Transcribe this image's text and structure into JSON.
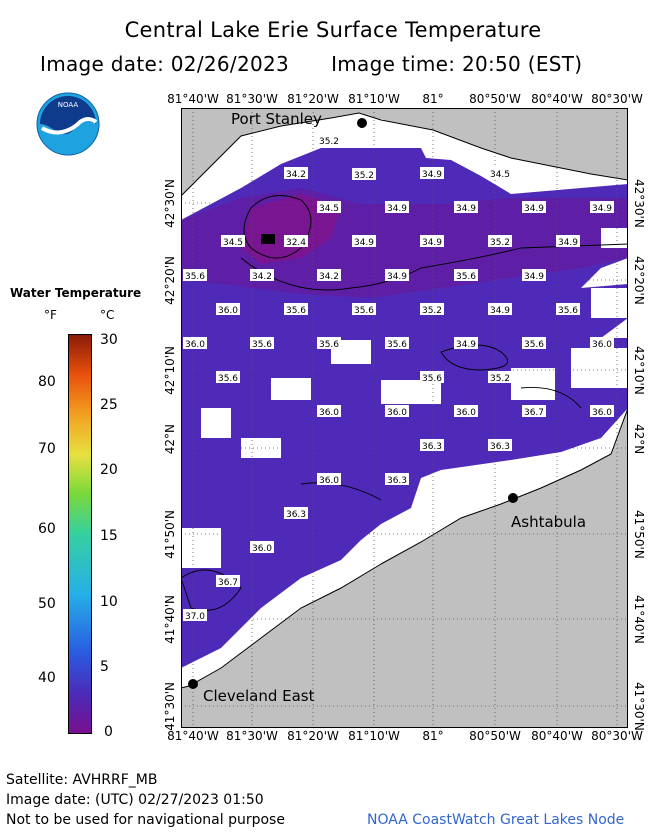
{
  "title": "Central Lake Erie Surface Temperature",
  "image_date": "Image date: 02/26/2023",
  "image_time": "Image time: 20:50 (EST)",
  "logo_text": "NOAA",
  "lon_ticks": [
    "81°40'W",
    "81°30'W",
    "81°20'W",
    "81°10'W",
    "81°",
    "80°50'W",
    "80°40'W",
    "80°30'W"
  ],
  "lat_ticks": [
    "42°30'N",
    "42°20'N",
    "42°10'N",
    "42°N",
    "41°50'N",
    "41°40'N",
    "41°30'N"
  ],
  "cities": {
    "port_stanley": "Port Stanley",
    "ashtabula": "Ashtabula",
    "cleveland_east": "Cleveland East"
  },
  "legend": {
    "title": "Water Temperature",
    "unit_f": "°F",
    "unit_c": "°C",
    "f_labels": [
      "80",
      "70",
      "60",
      "50",
      "40"
    ],
    "c_labels": [
      "30",
      "25",
      "20",
      "15",
      "10",
      "5",
      "0"
    ]
  },
  "temperature_labels": [
    {
      "v": "35.2"
    },
    {
      "v": "34.2"
    },
    {
      "v": "35.2"
    },
    {
      "v": "34.9"
    },
    {
      "v": "34.5"
    },
    {
      "v": "34.5"
    },
    {
      "v": "34.9"
    },
    {
      "v": "34.9"
    },
    {
      "v": "34.9"
    },
    {
      "v": "34.9"
    },
    {
      "v": "34.5"
    },
    {
      "v": "32.4"
    },
    {
      "v": "34.9"
    },
    {
      "v": "34.9"
    },
    {
      "v": "35.2"
    },
    {
      "v": "34.9"
    },
    {
      "v": "35.6"
    },
    {
      "v": "34.2"
    },
    {
      "v": "34.2"
    },
    {
      "v": "34.9"
    },
    {
      "v": "35.6"
    },
    {
      "v": "34.9"
    },
    {
      "v": "36.0"
    },
    {
      "v": "35.6"
    },
    {
      "v": "35.6"
    },
    {
      "v": "35.2"
    },
    {
      "v": "34.9"
    },
    {
      "v": "35.6"
    },
    {
      "v": "36.0"
    },
    {
      "v": "35.6"
    },
    {
      "v": "35.6"
    },
    {
      "v": "35.6"
    },
    {
      "v": "34.9"
    },
    {
      "v": "35.6"
    },
    {
      "v": "36.0"
    },
    {
      "v": "35.6"
    },
    {
      "v": "35.6"
    },
    {
      "v": "35.2"
    },
    {
      "v": "36.0"
    },
    {
      "v": "36.0"
    },
    {
      "v": "36.0"
    },
    {
      "v": "36.7"
    },
    {
      "v": "36.0"
    },
    {
      "v": "36.3"
    },
    {
      "v": "36.3"
    },
    {
      "v": "36.0"
    },
    {
      "v": "36.3"
    },
    {
      "v": "36.3"
    },
    {
      "v": "36.0"
    },
    {
      "v": "36.7"
    },
    {
      "v": "37.0"
    }
  ],
  "footer": {
    "satellite": "Satellite: AVHRRF_MB",
    "utc_date": "Image date: (UTC) 02/27/2023  01:50",
    "disclaimer": "Not to be used for navigational purpose",
    "credit": "NOAA CoastWatch Great Lakes Node"
  }
}
